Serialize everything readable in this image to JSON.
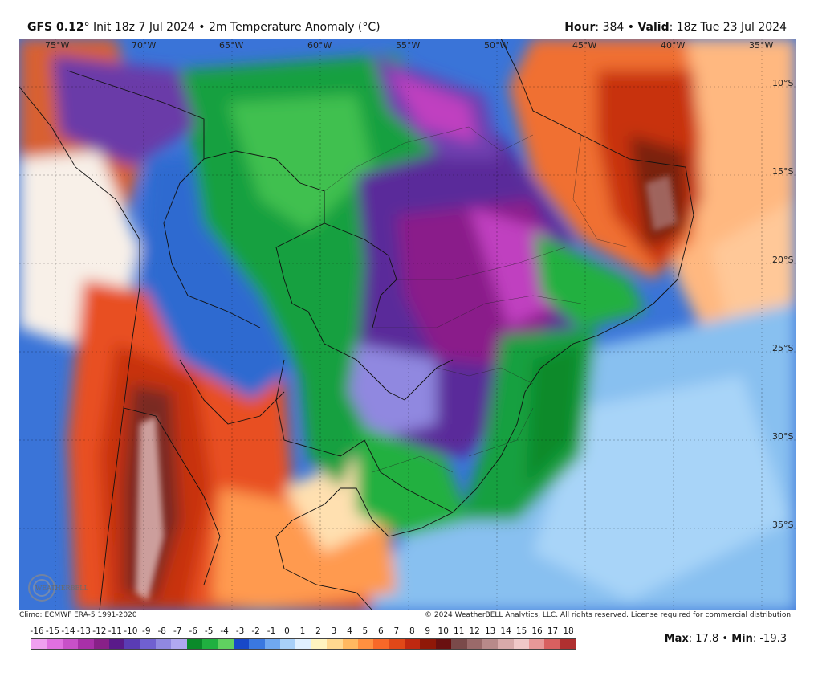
{
  "header": {
    "model": "GFS 0.12",
    "degree": "°",
    "init_text": " Init 18z 7 Jul 2024 • 2m Temperature Anomaly (°C)",
    "hour_label": "Hour",
    "hour_value": ": 384 • ",
    "valid_label": "Valid",
    "valid_value": ": 18z Tue 23 Jul 2024"
  },
  "map": {
    "lon_labels": [
      "75°W",
      "70°W",
      "65°W",
      "60°W",
      "55°W",
      "50°W",
      "45°W",
      "40°W",
      "35°W"
    ],
    "lat_labels": [
      "10°S",
      "15°S",
      "20°S",
      "25°S",
      "30°S",
      "35°S"
    ]
  },
  "footer": {
    "climo": "Climo: ECMWF ERA-5 1991-2020",
    "copyright": "© 2024 WeatherBELL Analytics, LLC. All rights reserved. License required for commercial distribution.",
    "logo_text": "WEATHERBELL"
  },
  "colorbar": {
    "labels": [
      "-16",
      "-15",
      "-14",
      "-13",
      "-12",
      "-11",
      "-10",
      "-9",
      "-8",
      "-7",
      "-6",
      "-5",
      "-4",
      "-3",
      "-2",
      "-1",
      "0",
      "1",
      "2",
      "3",
      "4",
      "5",
      "6",
      "7",
      "8",
      "9",
      "10",
      "11",
      "12",
      "13",
      "14",
      "15",
      "16",
      "17",
      "18"
    ],
    "colors": [
      "#f0a0f0",
      "#e070e0",
      "#c850c8",
      "#a830a8",
      "#882088",
      "#5a1a8a",
      "#5a3cb4",
      "#7060d0",
      "#9088e0",
      "#b0a8f0",
      "#0a8a2a",
      "#20b040",
      "#60d060",
      "#1848c8",
      "#3a78e0",
      "#70a8f0",
      "#a8d0f8",
      "#e0f0ff",
      "#fff4c0",
      "#ffd890",
      "#ffb860",
      "#ff9040",
      "#f86828",
      "#e04818",
      "#c02810",
      "#901808",
      "#6a1010",
      "#7a4a4a",
      "#9a6a6a",
      "#b88a8a",
      "#d8aaaa",
      "#f0c8c8",
      "#e89898",
      "#d86060",
      "#b03030"
    ]
  },
  "stats": {
    "max_label": "Max",
    "max_value": ": 17.8 • ",
    "min_label": "Min",
    "min_value": ": -19.3"
  }
}
